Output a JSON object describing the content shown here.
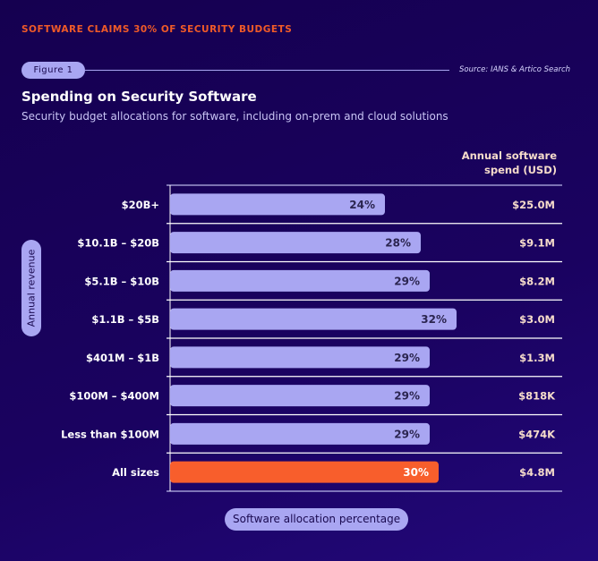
{
  "kicker": "SOFTWARE CLAIMS 30% OF SECURITY BUDGETS",
  "figure_label": "Figure 1",
  "source": "Source: IANS & Artico Search",
  "colors": {
    "background": "#150050",
    "bar": "#a9a6f2",
    "highlight_bar": "#f85e2c",
    "kicker": "#f05a28",
    "spend_text": "#f6dccb"
  },
  "chart_data": {
    "type": "bar",
    "orientation": "horizontal",
    "title": "Spending on Security Software",
    "subtitle": "Security budget allocations for software, including on-prem and cloud solutions",
    "ylabel": "Annual revenue",
    "xlabel": "Software allocation percentage",
    "secondary_column_label": "Annual software spend (USD)",
    "categories": [
      "$20B+",
      "$10.1B  – $20B",
      "$5.1B  – $10B",
      "$1.1B – $5B",
      "$401M – $1B",
      "$100M – $400M",
      "Less than $100M",
      "All sizes"
    ],
    "values": [
      24,
      28,
      29,
      32,
      29,
      29,
      29,
      30
    ],
    "value_labels": [
      "24%",
      "28%",
      "29%",
      "32%",
      "29%",
      "29%",
      "29%",
      "30%"
    ],
    "spend": [
      "$25.0M",
      "$9.1M",
      "$8.2M",
      "$3.0M",
      "$1.3M",
      "$818K",
      "$474K",
      "$4.8M"
    ],
    "highlight": "All sizes",
    "xlim": [
      0,
      43.8
    ],
    "grid": false
  }
}
